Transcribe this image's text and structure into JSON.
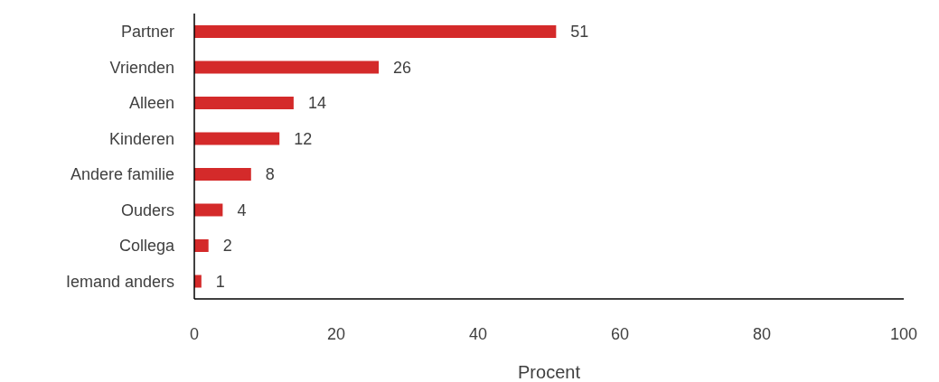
{
  "chart_data": {
    "type": "bar",
    "orientation": "horizontal",
    "categories": [
      "Partner",
      "Vrienden",
      "Alleen",
      "Kinderen",
      "Andere familie",
      "Ouders",
      "Collega",
      "Iemand anders"
    ],
    "values": [
      51,
      26,
      14,
      12,
      8,
      4,
      2,
      1
    ],
    "color": "#d42a2a",
    "xlabel": "Procent",
    "xlim": [
      0,
      100
    ],
    "xticks": [
      0,
      20,
      40,
      60,
      80,
      100
    ],
    "data_labels": true,
    "grid": false,
    "legend": false
  }
}
